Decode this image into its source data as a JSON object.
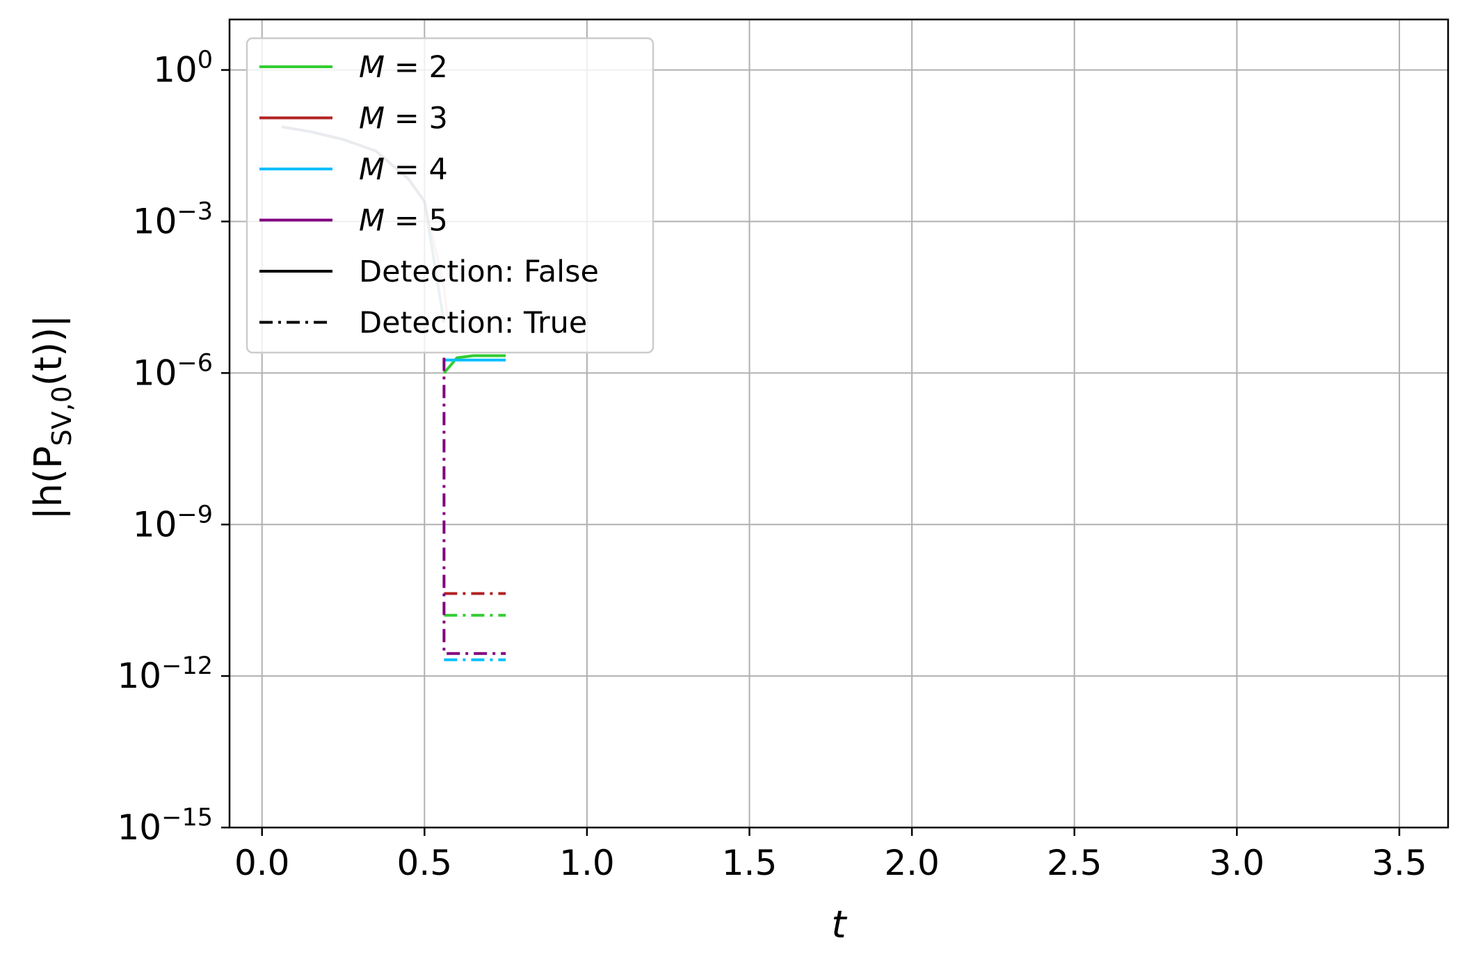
{
  "chart_data": {
    "type": "line",
    "title": "",
    "xlabel": "t",
    "ylabel": {
      "main": "|h(P",
      "sub": "SV,0",
      "tail": "(t))|"
    },
    "xlim": [
      -0.1,
      3.65
    ],
    "ylim": [
      1e-15,
      10.0
    ],
    "yscale": "log",
    "grid": true,
    "legend_position": "upper-left",
    "x_ticks": [
      0.0,
      0.5,
      1.0,
      1.5,
      2.0,
      2.5,
      3.0,
      3.5
    ],
    "x_tick_labels": [
      "0.0",
      "0.5",
      "1.0",
      "1.5",
      "2.0",
      "2.5",
      "3.0",
      "3.5"
    ],
    "y_ticks": [
      {
        "value": 1.0,
        "base": "10",
        "exp": "0"
      },
      {
        "value": 0.001,
        "base": "10",
        "exp": "−3"
      },
      {
        "value": 1e-06,
        "base": "10",
        "exp": "−6"
      },
      {
        "value": 1e-09,
        "base": "10",
        "exp": "−9"
      },
      {
        "value": 1e-12,
        "base": "10",
        "exp": "−12"
      },
      {
        "value": 1e-15,
        "base": "10",
        "exp": "−15"
      }
    ],
    "legend": [
      {
        "label_italic": "M",
        "label_rest": " = 2",
        "color": "#32cd32",
        "style": "solid"
      },
      {
        "label_italic": "M",
        "label_rest": " = 3",
        "color": "#b22222",
        "style": "solid"
      },
      {
        "label_italic": "M",
        "label_rest": " = 4",
        "color": "#00bfff",
        "style": "solid"
      },
      {
        "label_italic": "M",
        "label_rest": " = 5",
        "color": "#800080",
        "style": "solid"
      },
      {
        "label_italic": "",
        "label_rest": "Detection: False",
        "color": "#000000",
        "style": "solid"
      },
      {
        "label_italic": "",
        "label_rest": "Detection: True",
        "color": "#000000",
        "style": "dashdot"
      }
    ],
    "series": [
      {
        "name": "M = 2, Detection: False",
        "color": "#32cd32",
        "style": "solid",
        "opacity": 0.25,
        "x": [
          0.06,
          0.15,
          0.25,
          0.35,
          0.45,
          0.5,
          0.56
        ],
        "y": [
          0.075,
          0.06,
          0.042,
          0.025,
          0.007,
          0.0025,
          1e-05
        ]
      },
      {
        "name": "M = 2, Detection: False",
        "color": "#32cd32",
        "style": "solid",
        "opacity": 1,
        "x": [
          0.56,
          0.6,
          0.65,
          0.7,
          0.75
        ],
        "y": [
          1e-06,
          2e-06,
          2.2e-06,
          2.2e-06,
          2.2e-06
        ]
      },
      {
        "name": "M = 3, Detection: False",
        "color": "#b22222",
        "style": "solid",
        "opacity": 0.22,
        "x": [
          0.06,
          0.15,
          0.25,
          0.35,
          0.45,
          0.5,
          0.56,
          0.57,
          0.6,
          0.65,
          0.7,
          0.75
        ],
        "y": [
          0.075,
          0.06,
          0.042,
          0.025,
          0.007,
          0.0025,
          5e-05,
          1.3e-05,
          1.25e-05,
          1.2e-05,
          1.2e-05,
          1.2e-05
        ]
      },
      {
        "name": "M = 4, Detection: False",
        "color": "#00bfff",
        "style": "solid",
        "opacity": 0.25,
        "x": [
          0.06,
          0.15,
          0.25,
          0.35,
          0.45,
          0.5,
          0.56
        ],
        "y": [
          0.075,
          0.06,
          0.042,
          0.025,
          0.007,
          0.0025,
          1e-05
        ]
      },
      {
        "name": "M = 4, Detection: False",
        "color": "#00bfff",
        "style": "solid",
        "opacity": 1,
        "x": [
          0.56,
          0.6,
          0.65,
          0.7,
          0.75
        ],
        "y": [
          1.8e-06,
          1.8e-06,
          1.8e-06,
          1.8e-06,
          1.8e-06
        ]
      },
      {
        "name": "M = 5, Detection: False",
        "color": "#800080",
        "style": "solid",
        "opacity": 0.2,
        "x": [
          0.06,
          0.15,
          0.25,
          0.35,
          0.45,
          0.5,
          0.56
        ],
        "y": [
          0.075,
          0.06,
          0.042,
          0.025,
          0.007,
          0.0025,
          1e-05
        ]
      },
      {
        "name": "M = 2, Detection: True",
        "color": "#32cd32",
        "style": "dashdot",
        "opacity": 1,
        "x": [
          0.56,
          0.75
        ],
        "y": [
          1.6e-11,
          1.6e-11
        ]
      },
      {
        "name": "M = 3, Detection: True",
        "color": "#b22222",
        "style": "dashdot",
        "opacity": 1,
        "x": [
          0.56,
          0.75
        ],
        "y": [
          4.3e-11,
          4.3e-11
        ]
      },
      {
        "name": "M = 4, Detection: True",
        "color": "#00bfff",
        "style": "dashdot",
        "opacity": 1,
        "x": [
          0.56,
          0.75
        ],
        "y": [
          2.1e-12,
          2.1e-12
        ]
      },
      {
        "name": "M = 5, Detection: True",
        "color": "#800080",
        "style": "dashdot",
        "opacity": 1,
        "x": [
          0.56,
          0.56,
          0.75
        ],
        "y": [
          2e-06,
          2.8e-12,
          2.8e-12
        ]
      }
    ]
  }
}
